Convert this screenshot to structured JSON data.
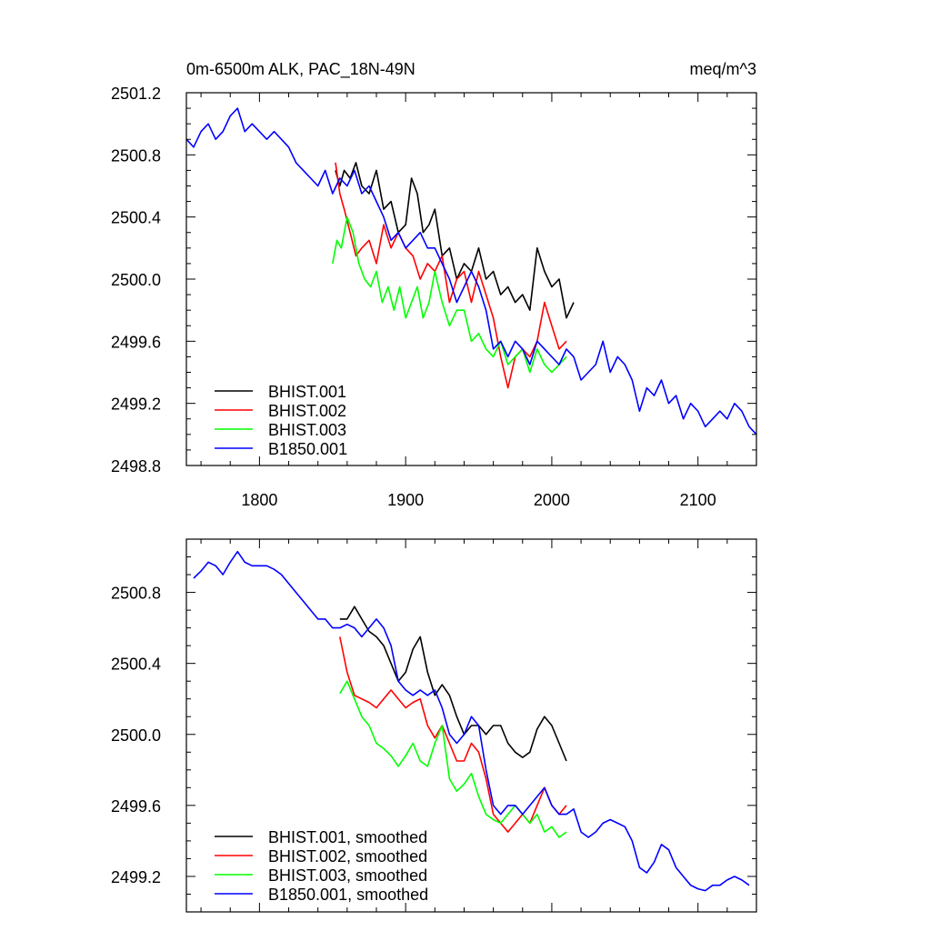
{
  "chart_data": [
    {
      "type": "line",
      "title_left": "0m-6500m ALK, PAC_18N-49N",
      "title_right": "meq/m^3",
      "xlim": [
        1750,
        2140
      ],
      "ylim": [
        2498.8,
        2501.2
      ],
      "xticks": [
        1800,
        1900,
        2000,
        2100
      ],
      "xtick_labels": [
        "1800",
        "1900",
        "2000",
        "2100"
      ],
      "yticks": [
        2498.8,
        2499.2,
        2499.6,
        2500.0,
        2500.4,
        2500.8,
        2501.2
      ],
      "ytick_labels": [
        "2498.8",
        "2499.2",
        "2499.6",
        "2500.0",
        "2500.4",
        "2500.8",
        "2501.2"
      ],
      "legend_position": "bottom-left",
      "series": [
        {
          "name": "BHIST.001",
          "color": "#000000",
          "x": [
            1852,
            1855,
            1858,
            1862,
            1866,
            1870,
            1875,
            1880,
            1885,
            1890,
            1895,
            1900,
            1904,
            1908,
            1912,
            1916,
            1920,
            1925,
            1930,
            1935,
            1940,
            1945,
            1950,
            1955,
            1960,
            1965,
            1970,
            1975,
            1980,
            1985,
            1990,
            1995,
            2000,
            2005,
            2010,
            2015
          ],
          "y": [
            2500.7,
            2500.6,
            2500.7,
            2500.65,
            2500.75,
            2500.6,
            2500.55,
            2500.7,
            2500.45,
            2500.5,
            2500.3,
            2500.35,
            2500.65,
            2500.55,
            2500.3,
            2500.35,
            2500.45,
            2500.15,
            2500.2,
            2500.0,
            2500.1,
            2500.05,
            2500.2,
            2500.0,
            2500.05,
            2499.9,
            2499.95,
            2499.85,
            2499.9,
            2499.8,
            2500.2,
            2500.05,
            2499.95,
            2500.0,
            2499.75,
            2499.85
          ]
        },
        {
          "name": "BHIST.002",
          "color": "#ff0000",
          "x": [
            1852,
            1855,
            1858,
            1862,
            1866,
            1870,
            1875,
            1880,
            1885,
            1890,
            1895,
            1900,
            1905,
            1910,
            1915,
            1920,
            1925,
            1930,
            1935,
            1940,
            1945,
            1950,
            1955,
            1960,
            1965,
            1970,
            1975,
            1980,
            1985,
            1990,
            1995,
            2000,
            2005,
            2010
          ],
          "y": [
            2500.75,
            2500.55,
            2500.45,
            2500.3,
            2500.15,
            2500.2,
            2500.25,
            2500.1,
            2500.35,
            2500.2,
            2500.3,
            2500.2,
            2500.15,
            2500.0,
            2500.1,
            2500.05,
            2500.15,
            2499.85,
            2500.0,
            2500.05,
            2499.85,
            2500.05,
            2499.9,
            2499.75,
            2499.5,
            2499.3,
            2499.5,
            2499.55,
            2499.5,
            2499.6,
            2499.85,
            2499.7,
            2499.55,
            2499.6
          ]
        },
        {
          "name": "BHIST.003",
          "color": "#00ff00",
          "x": [
            1850,
            1853,
            1856,
            1860,
            1864,
            1868,
            1872,
            1876,
            1880,
            1884,
            1888,
            1892,
            1896,
            1900,
            1904,
            1908,
            1912,
            1916,
            1920,
            1925,
            1930,
            1935,
            1940,
            1945,
            1950,
            1955,
            1960,
            1965,
            1970,
            1975,
            1980,
            1985,
            1990,
            1995,
            2000,
            2005,
            2010
          ],
          "y": [
            2500.1,
            2500.25,
            2500.2,
            2500.4,
            2500.3,
            2500.1,
            2500.0,
            2499.95,
            2500.05,
            2499.85,
            2499.95,
            2499.8,
            2499.95,
            2499.75,
            2499.85,
            2499.95,
            2499.75,
            2499.85,
            2500.05,
            2499.85,
            2499.7,
            2499.8,
            2499.8,
            2499.6,
            2499.65,
            2499.55,
            2499.5,
            2499.6,
            2499.45,
            2499.5,
            2499.55,
            2499.4,
            2499.55,
            2499.45,
            2499.4,
            2499.45,
            2499.5
          ]
        },
        {
          "name": "B1850.001",
          "color": "#0000ff",
          "x": [
            1750,
            1755,
            1760,
            1765,
            1770,
            1775,
            1780,
            1785,
            1790,
            1795,
            1800,
            1805,
            1810,
            1815,
            1820,
            1825,
            1830,
            1835,
            1840,
            1845,
            1850,
            1855,
            1860,
            1865,
            1870,
            1875,
            1880,
            1885,
            1890,
            1895,
            1900,
            1905,
            1910,
            1915,
            1920,
            1925,
            1930,
            1935,
            1940,
            1945,
            1950,
            1955,
            1960,
            1965,
            1970,
            1975,
            1980,
            1985,
            1990,
            1995,
            2000,
            2005,
            2010,
            2015,
            2020,
            2025,
            2030,
            2035,
            2040,
            2045,
            2050,
            2055,
            2060,
            2065,
            2070,
            2075,
            2080,
            2085,
            2090,
            2095,
            2100,
            2105,
            2110,
            2115,
            2120,
            2125,
            2130,
            2135,
            2140
          ],
          "y": [
            2500.9,
            2500.85,
            2500.95,
            2501.0,
            2500.9,
            2500.95,
            2501.05,
            2501.1,
            2500.95,
            2501.0,
            2500.95,
            2500.9,
            2500.95,
            2500.9,
            2500.85,
            2500.75,
            2500.7,
            2500.65,
            2500.6,
            2500.7,
            2500.55,
            2500.65,
            2500.6,
            2500.7,
            2500.55,
            2500.6,
            2500.5,
            2500.4,
            2500.25,
            2500.3,
            2500.2,
            2500.25,
            2500.3,
            2500.2,
            2500.2,
            2500.1,
            2500.0,
            2499.85,
            2499.95,
            2500.05,
            2499.95,
            2499.8,
            2499.55,
            2499.6,
            2499.5,
            2499.6,
            2499.55,
            2499.45,
            2499.6,
            2499.55,
            2499.5,
            2499.45,
            2499.55,
            2499.5,
            2499.35,
            2499.4,
            2499.45,
            2499.6,
            2499.4,
            2499.5,
            2499.45,
            2499.35,
            2499.15,
            2499.3,
            2499.25,
            2499.35,
            2499.2,
            2499.25,
            2499.1,
            2499.2,
            2499.15,
            2499.05,
            2499.1,
            2499.15,
            2499.1,
            2499.2,
            2499.15,
            2499.05,
            2499.0
          ]
        }
      ]
    },
    {
      "type": "line",
      "xlim": [
        1750,
        2140
      ],
      "ylim": [
        2499.0,
        2501.1
      ],
      "xticks": [
        1800,
        1900,
        2000,
        2100
      ],
      "yticks": [
        2499.2,
        2499.6,
        2500.0,
        2500.4,
        2500.8
      ],
      "ytick_labels": [
        "2499.2",
        "2499.6",
        "2500.0",
        "2500.4",
        "2500.8"
      ],
      "legend_position": "bottom-left",
      "series": [
        {
          "name": "BHIST.001, smoothed",
          "color": "#000000",
          "x": [
            1855,
            1860,
            1865,
            1870,
            1875,
            1880,
            1885,
            1890,
            1895,
            1900,
            1905,
            1910,
            1915,
            1920,
            1925,
            1930,
            1935,
            1940,
            1945,
            1950,
            1955,
            1960,
            1965,
            1970,
            1975,
            1980,
            1985,
            1990,
            1995,
            2000,
            2005,
            2010
          ],
          "y": [
            2500.65,
            2500.65,
            2500.72,
            2500.65,
            2500.58,
            2500.55,
            2500.5,
            2500.4,
            2500.3,
            2500.35,
            2500.48,
            2500.55,
            2500.35,
            2500.22,
            2500.28,
            2500.22,
            2500.1,
            2500.0,
            2500.05,
            2500.05,
            2500.0,
            2500.05,
            2500.05,
            2499.95,
            2499.9,
            2499.87,
            2499.9,
            2500.03,
            2500.1,
            2500.05,
            2499.95,
            2499.85
          ]
        },
        {
          "name": "BHIST.002, smoothed",
          "color": "#ff0000",
          "x": [
            1855,
            1860,
            1865,
            1870,
            1875,
            1880,
            1885,
            1890,
            1895,
            1900,
            1905,
            1910,
            1915,
            1920,
            1925,
            1930,
            1935,
            1940,
            1945,
            1950,
            1955,
            1960,
            1965,
            1970,
            1975,
            1980,
            1985,
            1990,
            1995,
            2000,
            2005,
            2010
          ],
          "y": [
            2500.55,
            2500.35,
            2500.22,
            2500.2,
            2500.18,
            2500.15,
            2500.2,
            2500.25,
            2500.2,
            2500.15,
            2500.18,
            2500.2,
            2500.05,
            2499.98,
            2500.05,
            2499.95,
            2499.85,
            2499.85,
            2499.95,
            2499.9,
            2499.75,
            2499.55,
            2499.5,
            2499.45,
            2499.5,
            2499.55,
            2499.5,
            2499.6,
            2499.7,
            2499.6,
            2499.55,
            2499.6
          ]
        },
        {
          "name": "BHIST.003, smoothed",
          "color": "#00ff00",
          "x": [
            1855,
            1860,
            1865,
            1870,
            1875,
            1880,
            1885,
            1890,
            1895,
            1900,
            1905,
            1910,
            1915,
            1920,
            1925,
            1930,
            1935,
            1940,
            1945,
            1950,
            1955,
            1960,
            1965,
            1970,
            1975,
            1980,
            1985,
            1990,
            1995,
            2000,
            2005,
            2010
          ],
          "y": [
            2500.23,
            2500.3,
            2500.2,
            2500.1,
            2500.05,
            2499.95,
            2499.92,
            2499.88,
            2499.82,
            2499.88,
            2499.95,
            2499.85,
            2499.82,
            2499.95,
            2500.05,
            2499.75,
            2499.68,
            2499.72,
            2499.78,
            2499.65,
            2499.55,
            2499.52,
            2499.5,
            2499.55,
            2499.6,
            2499.55,
            2499.5,
            2499.55,
            2499.45,
            2499.48,
            2499.42,
            2499.45
          ]
        },
        {
          "name": "B1850.001, smoothed",
          "color": "#0000ff",
          "x": [
            1755,
            1760,
            1765,
            1770,
            1775,
            1780,
            1785,
            1790,
            1795,
            1800,
            1805,
            1810,
            1815,
            1820,
            1825,
            1830,
            1835,
            1840,
            1845,
            1850,
            1855,
            1860,
            1865,
            1870,
            1875,
            1880,
            1885,
            1890,
            1895,
            1900,
            1905,
            1910,
            1915,
            1920,
            1925,
            1930,
            1935,
            1940,
            1945,
            1950,
            1955,
            1960,
            1965,
            1970,
            1975,
            1980,
            1985,
            1990,
            1995,
            2000,
            2005,
            2010,
            2015,
            2020,
            2025,
            2030,
            2035,
            2040,
            2045,
            2050,
            2055,
            2060,
            2065,
            2070,
            2075,
            2080,
            2085,
            2090,
            2095,
            2100,
            2105,
            2110,
            2115,
            2120,
            2125,
            2130,
            2135
          ],
          "y": [
            2500.88,
            2500.92,
            2500.97,
            2500.95,
            2500.9,
            2500.97,
            2501.03,
            2500.97,
            2500.95,
            2500.95,
            2500.95,
            2500.93,
            2500.9,
            2500.85,
            2500.8,
            2500.75,
            2500.7,
            2500.65,
            2500.65,
            2500.6,
            2500.6,
            2500.62,
            2500.6,
            2500.55,
            2500.6,
            2500.65,
            2500.6,
            2500.5,
            2500.3,
            2500.25,
            2500.22,
            2500.25,
            2500.22,
            2500.25,
            2500.15,
            2500.0,
            2499.95,
            2500.0,
            2500.1,
            2500.05,
            2499.8,
            2499.6,
            2499.55,
            2499.6,
            2499.6,
            2499.55,
            2499.6,
            2499.65,
            2499.7,
            2499.6,
            2499.55,
            2499.55,
            2499.58,
            2499.45,
            2499.42,
            2499.45,
            2499.5,
            2499.52,
            2499.5,
            2499.48,
            2499.4,
            2499.25,
            2499.22,
            2499.28,
            2499.38,
            2499.35,
            2499.25,
            2499.2,
            2499.15,
            2499.13,
            2499.12,
            2499.15,
            2499.15,
            2499.18,
            2499.2,
            2499.18,
            2499.15
          ]
        }
      ]
    }
  ]
}
